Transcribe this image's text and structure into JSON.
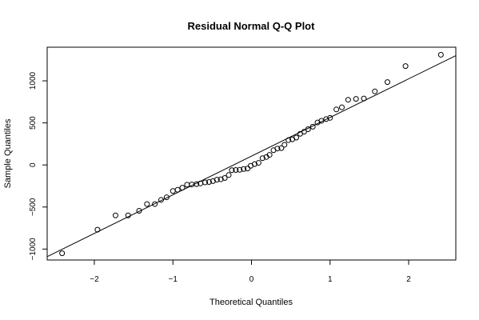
{
  "chart_data": {
    "type": "scatter",
    "title": "Residual Normal Q-Q Plot",
    "xlabel": "Theoretical Quantiles",
    "ylabel": "Sample Quantiles",
    "xlim": [
      -2.6,
      2.6
    ],
    "ylim": [
      -1130,
      1400
    ],
    "xticks": [
      -2,
      -1,
      0,
      1,
      2
    ],
    "xtick_labels": [
      "−2",
      "−1",
      "0",
      "1",
      "2"
    ],
    "yticks": [
      -1000,
      -500,
      0,
      500,
      1000
    ],
    "ytick_labels": [
      "−1000",
      "−500",
      "0",
      "500",
      "1000"
    ],
    "grid": false,
    "legend": "none",
    "reference_line": {
      "x": [
        -2.6,
        2.6
      ],
      "y": [
        -1090,
        1300
      ]
    },
    "points": [
      {
        "x": -2.41,
        "y": -1050
      },
      {
        "x": -1.96,
        "y": -770
      },
      {
        "x": -1.73,
        "y": -600
      },
      {
        "x": -1.57,
        "y": -600
      },
      {
        "x": -1.43,
        "y": -545
      },
      {
        "x": -1.33,
        "y": -465
      },
      {
        "x": -1.23,
        "y": -465
      },
      {
        "x": -1.15,
        "y": -415
      },
      {
        "x": -1.08,
        "y": -385
      },
      {
        "x": -1.0,
        "y": -310
      },
      {
        "x": -0.94,
        "y": -295
      },
      {
        "x": -0.88,
        "y": -270
      },
      {
        "x": -0.82,
        "y": -235
      },
      {
        "x": -0.76,
        "y": -232
      },
      {
        "x": -0.7,
        "y": -228
      },
      {
        "x": -0.65,
        "y": -220
      },
      {
        "x": -0.59,
        "y": -208
      },
      {
        "x": -0.54,
        "y": -203
      },
      {
        "x": -0.49,
        "y": -192
      },
      {
        "x": -0.44,
        "y": -175
      },
      {
        "x": -0.39,
        "y": -170
      },
      {
        "x": -0.34,
        "y": -155
      },
      {
        "x": -0.29,
        "y": -120
      },
      {
        "x": -0.25,
        "y": -62
      },
      {
        "x": -0.2,
        "y": -60
      },
      {
        "x": -0.15,
        "y": -58
      },
      {
        "x": -0.1,
        "y": -48
      },
      {
        "x": -0.05,
        "y": -42
      },
      {
        "x": -0.01,
        "y": -10
      },
      {
        "x": 0.04,
        "y": 10
      },
      {
        "x": 0.09,
        "y": 25
      },
      {
        "x": 0.14,
        "y": 80
      },
      {
        "x": 0.19,
        "y": 95
      },
      {
        "x": 0.23,
        "y": 120
      },
      {
        "x": 0.28,
        "y": 175
      },
      {
        "x": 0.33,
        "y": 195
      },
      {
        "x": 0.38,
        "y": 200
      },
      {
        "x": 0.42,
        "y": 240
      },
      {
        "x": 0.47,
        "y": 295
      },
      {
        "x": 0.52,
        "y": 305
      },
      {
        "x": 0.57,
        "y": 325
      },
      {
        "x": 0.62,
        "y": 370
      },
      {
        "x": 0.67,
        "y": 395
      },
      {
        "x": 0.72,
        "y": 425
      },
      {
        "x": 0.78,
        "y": 455
      },
      {
        "x": 0.84,
        "y": 505
      },
      {
        "x": 0.89,
        "y": 525
      },
      {
        "x": 0.95,
        "y": 545
      },
      {
        "x": 1.0,
        "y": 560
      },
      {
        "x": 1.08,
        "y": 660
      },
      {
        "x": 1.15,
        "y": 685
      },
      {
        "x": 1.23,
        "y": 775
      },
      {
        "x": 1.33,
        "y": 785
      },
      {
        "x": 1.43,
        "y": 790
      },
      {
        "x": 1.57,
        "y": 875
      },
      {
        "x": 1.73,
        "y": 985
      },
      {
        "x": 1.96,
        "y": 1175
      },
      {
        "x": 2.41,
        "y": 1310
      }
    ]
  }
}
